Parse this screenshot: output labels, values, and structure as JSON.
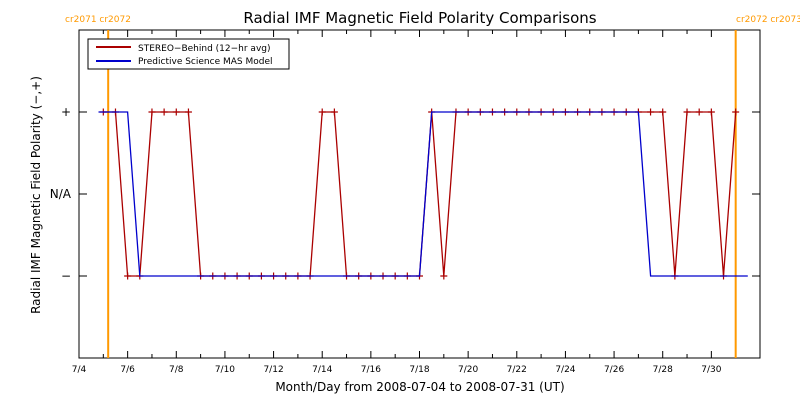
{
  "chart_data": {
    "type": "line",
    "title": "Radial IMF Magnetic Field Polarity Comparisons",
    "xlabel": "Month/Day from 2008-07-04 to 2008-07-31 (UT)",
    "ylabel": "Radial IMF Magnetic Field Polarity (−,+)",
    "x_unit": "days",
    "x_range": [
      "2008-07-04",
      "2008-07-31"
    ],
    "x_ticks": [
      "7/4",
      "7/6",
      "7/8",
      "7/10",
      "7/12",
      "7/14",
      "7/16",
      "7/18",
      "7/20",
      "7/22",
      "7/24",
      "7/26",
      "7/28",
      "7/30"
    ],
    "y_categories": [
      "−",
      "N/A",
      "+"
    ],
    "y_ticks": [
      {
        "label": "+",
        "value": 1
      },
      {
        "label": "N/A",
        "value": 0
      },
      {
        "label": "−",
        "value": -1
      }
    ],
    "ylim": [
      -2,
      2
    ],
    "legend_position": "top-left",
    "carrington_markers": [
      {
        "labels": "cr2071 cr2072",
        "date": "2008-07-05.2",
        "color": "#ff9900",
        "side": "left"
      },
      {
        "labels": "cr2072 cr2073",
        "date": "2008-07-31",
        "color": "#ff9900",
        "side": "right"
      }
    ],
    "series": [
      {
        "name": "STEREO−Behind (12−hr avg)",
        "color": "#aa0000",
        "marker": "plus",
        "x": [
          "2008-07-05.0",
          "2008-07-05.5",
          "2008-07-06.0",
          "2008-07-06.5",
          "2008-07-07.0",
          "2008-07-07.5",
          "2008-07-08.0",
          "2008-07-08.5",
          "2008-07-09.0",
          "2008-07-09.5",
          "2008-07-10.0",
          "2008-07-10.5",
          "2008-07-11.0",
          "2008-07-11.5",
          "2008-07-12.0",
          "2008-07-12.5",
          "2008-07-13.0",
          "2008-07-13.5",
          "2008-07-14.0",
          "2008-07-14.5",
          "2008-07-15.0",
          "2008-07-15.5",
          "2008-07-16.0",
          "2008-07-16.5",
          "2008-07-17.0",
          "2008-07-17.5",
          "2008-07-18.0",
          "2008-07-18.5",
          "2008-07-19.0",
          "2008-07-19.5",
          "2008-07-20.0",
          "2008-07-20.5",
          "2008-07-21.0",
          "2008-07-21.5",
          "2008-07-22.0",
          "2008-07-22.5",
          "2008-07-23.0",
          "2008-07-23.5",
          "2008-07-24.0",
          "2008-07-24.5",
          "2008-07-25.0",
          "2008-07-25.5",
          "2008-07-26.0",
          "2008-07-26.5",
          "2008-07-27.0",
          "2008-07-27.5",
          "2008-07-28.0",
          "2008-07-28.5",
          "2008-07-29.0",
          "2008-07-29.5",
          "2008-07-30.0",
          "2008-07-30.5",
          "2008-07-31.0"
        ],
        "y": [
          "+",
          "+",
          "−",
          "−",
          "+",
          "+",
          "+",
          "+",
          "−",
          "−",
          "−",
          "−",
          "−",
          "−",
          "−",
          "−",
          "−",
          "−",
          "+",
          "+",
          "−",
          "−",
          "−",
          "−",
          "−",
          "−",
          "−",
          "+",
          "−",
          "+",
          "+",
          "+",
          "+",
          "+",
          "+",
          "+",
          "+",
          "+",
          "+",
          "+",
          "+",
          "+",
          "+",
          "+",
          "+",
          "+",
          "+",
          "−",
          "+",
          "+",
          "+",
          "−",
          "+"
        ]
      },
      {
        "name": "Predictive Science MAS Model",
        "color": "#0000cc",
        "marker": "none",
        "x": [
          "2008-07-04.8",
          "2008-07-06.0",
          "2008-07-06.5",
          "2008-07-18.0",
          "2008-07-18.5",
          "2008-07-27.0",
          "2008-07-27.5",
          "2008-07-31.5"
        ],
        "y": [
          "+",
          "+",
          "−",
          "−",
          "+",
          "+",
          "−",
          "−"
        ]
      }
    ]
  }
}
